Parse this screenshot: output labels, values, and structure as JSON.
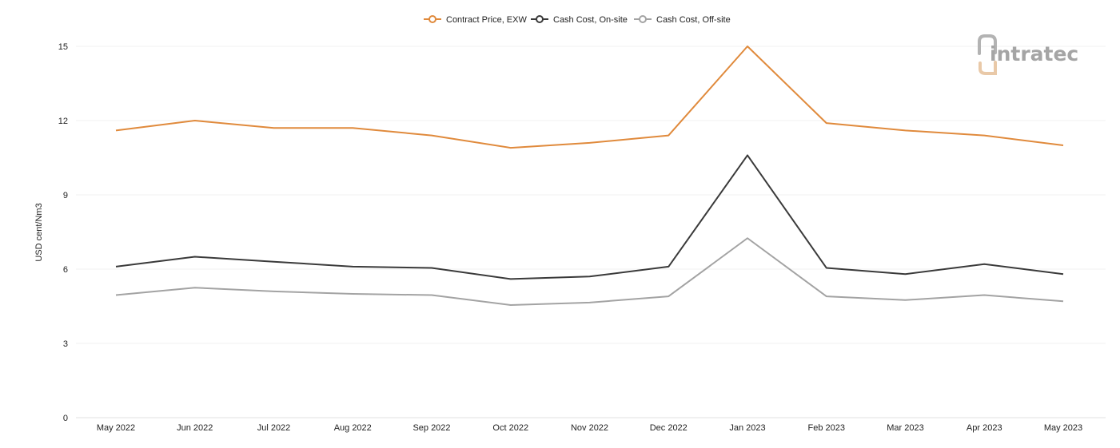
{
  "chart_data": {
    "type": "line",
    "categories": [
      "May 2022",
      "Jun 2022",
      "Jul 2022",
      "Aug 2022",
      "Sep 2022",
      "Oct 2022",
      "Nov 2022",
      "Dec 2022",
      "Jan 2023",
      "Feb 2023",
      "Mar 2023",
      "Apr 2023",
      "May 2023"
    ],
    "series": [
      {
        "name": "Contract Price, EXW",
        "color": "#e08a3c",
        "values": [
          11.6,
          12.0,
          11.7,
          11.7,
          11.4,
          10.9,
          11.1,
          11.4,
          15.0,
          11.9,
          11.6,
          11.4,
          11.0
        ]
      },
      {
        "name": "Cash Cost, On-site",
        "color": "#3a3a3a",
        "values": [
          6.1,
          6.5,
          6.3,
          6.1,
          6.05,
          5.6,
          5.7,
          6.1,
          10.6,
          6.05,
          5.8,
          6.2,
          5.8
        ]
      },
      {
        "name": "Cash Cost, Off-site",
        "color": "#a3a3a3",
        "values": [
          4.95,
          5.25,
          5.1,
          5.0,
          4.95,
          4.55,
          4.65,
          4.9,
          7.25,
          4.9,
          4.75,
          4.95,
          4.7
        ]
      }
    ],
    "ylabel": "USD cent/Nm3",
    "xlabel": "",
    "ylim": [
      0,
      15
    ],
    "yticks": [
      0,
      3,
      6,
      9,
      12,
      15
    ],
    "grid": true,
    "legend_position": "top-center"
  },
  "logo": {
    "text": "intratec",
    "color": "#a5a5a5",
    "accent": "#e9c9a8"
  }
}
